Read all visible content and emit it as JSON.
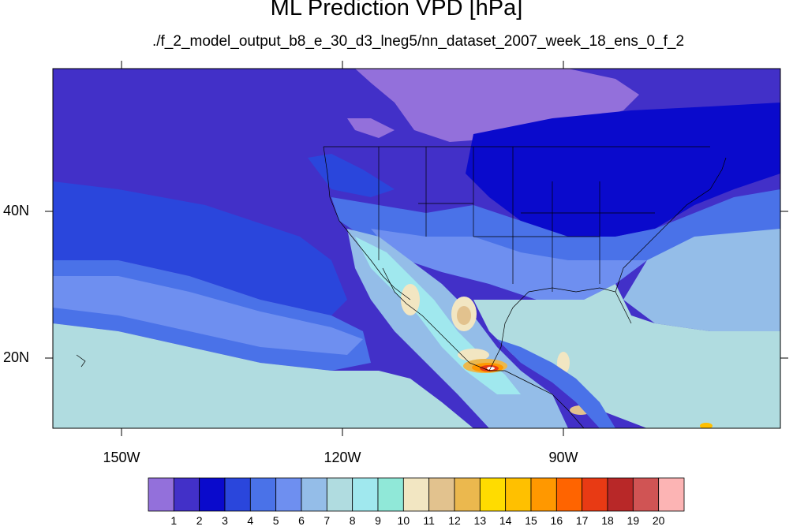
{
  "title": "ML Prediction VPD [hPa]",
  "subtitle": "./f_2_model_output_b8_e_30_d3_lneg5/nn_dataset_2007_week_18_ens_0_f_2",
  "map": {
    "lon_range": [
      -160,
      -62
    ],
    "lat_range": [
      10,
      59
    ],
    "lat_ticks": [
      {
        "value": 40,
        "label": "40N"
      },
      {
        "value": 20,
        "label": "20N"
      }
    ],
    "lon_ticks": [
      {
        "value": -150,
        "label": "150W"
      },
      {
        "value": -120,
        "label": "120W"
      },
      {
        "value": -90,
        "label": "90W"
      }
    ]
  },
  "colorbar": {
    "labels": [
      "1",
      "2",
      "3",
      "4",
      "5",
      "6",
      "7",
      "8",
      "9",
      "10",
      "11",
      "12",
      "13",
      "14",
      "15",
      "16",
      "17",
      "18",
      "19",
      "20"
    ],
    "colors": [
      "#9370db",
      "#4230c8",
      "#0a0acc",
      "#2a46dc",
      "#4a72e8",
      "#6e8ff0",
      "#94bde8",
      "#b0dce0",
      "#a0e8ee",
      "#90e8d8",
      "#f2e6c2",
      "#e2c28e",
      "#ebb84e",
      "#ffdc00",
      "#ffc000",
      "#ff9800",
      "#ff6400",
      "#e83a14",
      "#b82828",
      "#d05454",
      "#fcb4b4"
    ]
  }
}
